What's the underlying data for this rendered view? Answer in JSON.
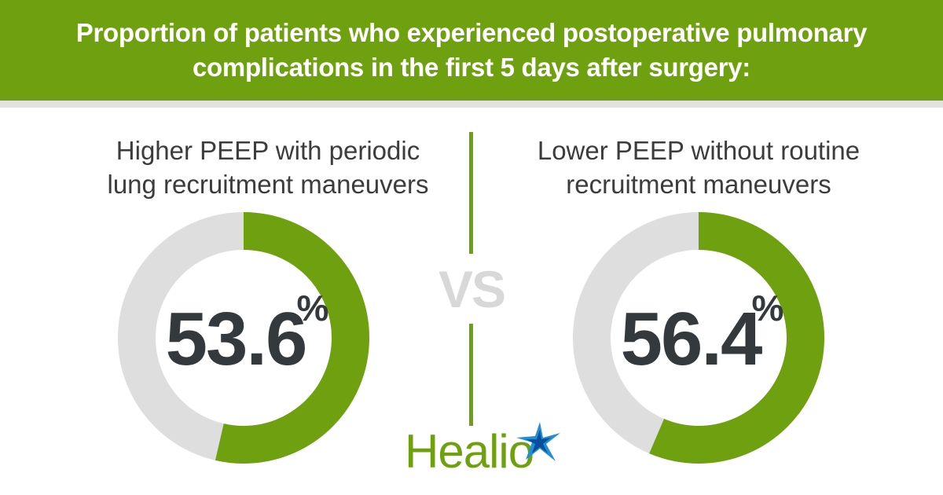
{
  "header": {
    "title_line1": "Proportion of patients who experienced postoperative pulmonary",
    "title_line2": "complications in the first 5 days after surgery:"
  },
  "chart_data": [
    {
      "type": "pie",
      "title": "Higher PEEP with periodic lung recruitment maneuvers",
      "value": 53.6,
      "value_label": "53.6",
      "unit": "%",
      "colors": {
        "value": "#6ea00f",
        "remainder": "#dedede"
      }
    },
    {
      "type": "pie",
      "title": "Lower PEEP without routine recruitment maneuvers",
      "value": 56.4,
      "value_label": "56.4",
      "unit": "%",
      "colors": {
        "value": "#6ea00f",
        "remainder": "#dedede"
      }
    }
  ],
  "left_panel": {
    "label_line1": "Higher PEEP with periodic",
    "label_line2": "lung recruitment maneuvers"
  },
  "right_panel": {
    "label_line1": "Lower PEEP without routine",
    "label_line2": "recruitment maneuvers"
  },
  "separator": {
    "text": "VS"
  },
  "logo": {
    "text": "Healio",
    "icon": "healio-star-icon"
  },
  "colors": {
    "brand_green": "#6ea00f",
    "ring_gray": "#dedede",
    "number_text": "#33393c",
    "vs_gray": "#d8d8d8"
  }
}
